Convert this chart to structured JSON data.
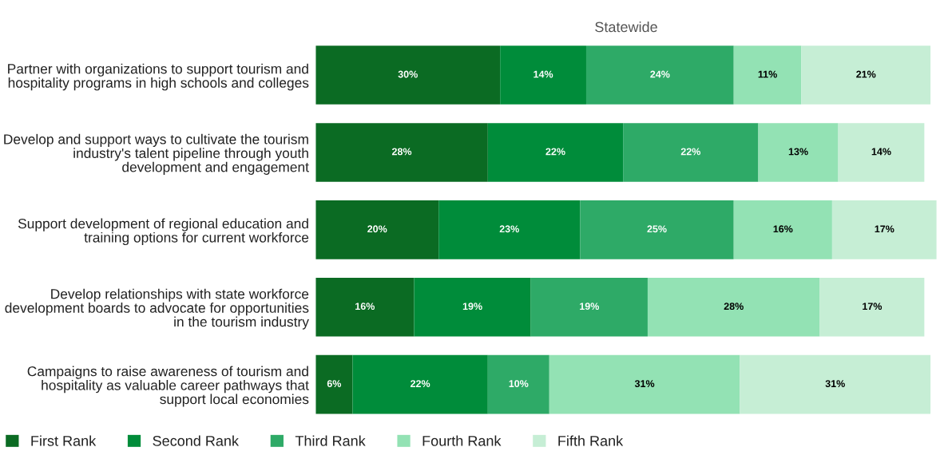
{
  "chart_data": {
    "type": "bar",
    "orientation": "horizontal",
    "stacked": true,
    "title": "Statewide",
    "categories": [
      "Partner with organizations to support tourism and hospitality programs in high schools and colleges",
      "Develop and support ways to cultivate the tourism industry's talent pipeline through youth development and engagement",
      "Support development of regional education and training options for current workforce",
      "Develop relationships with state workforce development boards to advocate for opportunities in the tourism industry",
      "Campaigns to raise awareness of tourism and hospitality as valuable career pathways that support local economies"
    ],
    "series": [
      {
        "name": "First Rank",
        "color": "#0b6b23",
        "values": [
          30,
          28,
          20,
          16,
          6
        ],
        "value_labels": [
          "30%",
          "28%",
          "20%",
          "16%",
          "6%"
        ]
      },
      {
        "name": "Second Rank",
        "color": "#008c3a",
        "values": [
          14,
          22,
          23,
          19,
          22
        ],
        "value_labels": [
          "14%",
          "22%",
          "23%",
          "19%",
          "22%"
        ]
      },
      {
        "name": "Third Rank",
        "color": "#2eaa67",
        "values": [
          24,
          22,
          25,
          19,
          10
        ],
        "value_labels": [
          "24%",
          "22%",
          "25%",
          "19%",
          "10%"
        ]
      },
      {
        "name": "Fourth Rank",
        "color": "#93e2b4",
        "values": [
          11,
          13,
          16,
          28,
          31
        ],
        "value_labels": [
          "11%",
          "13%",
          "16%",
          "28%",
          "31%"
        ]
      },
      {
        "name": "Fifth Rank",
        "color": "#c6eed5",
        "values": [
          21,
          14,
          17,
          17,
          31
        ],
        "value_labels": [
          "21%",
          "14%",
          "17%",
          "17%",
          "31%"
        ]
      }
    ],
    "tick_labels": "y",
    "grid": false,
    "legend": "bottom"
  }
}
